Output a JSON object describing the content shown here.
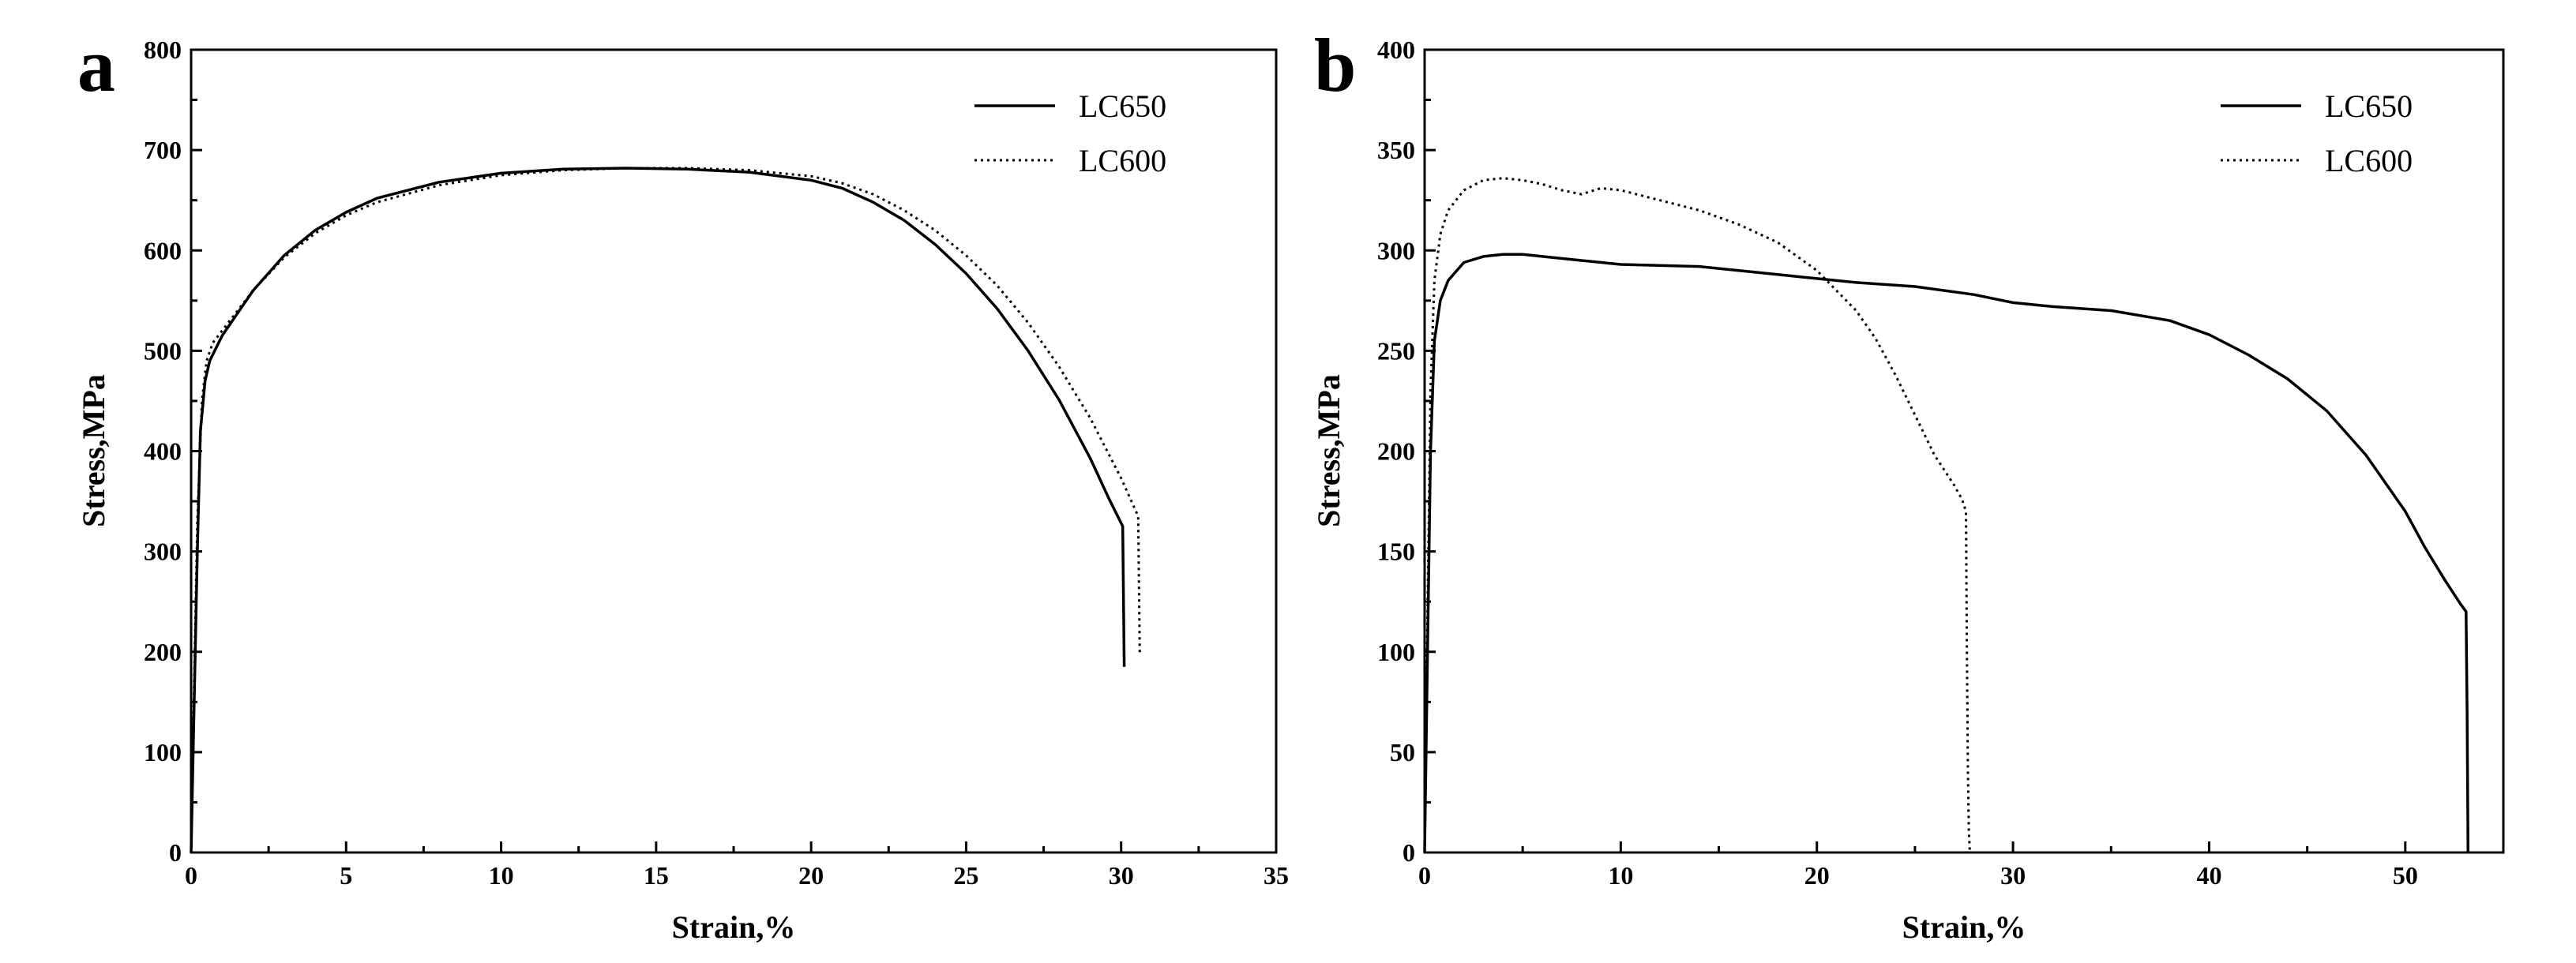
{
  "chart_data": [
    {
      "type": "line",
      "panel_label": "a",
      "title": "",
      "xlabel": "Strain,%",
      "ylabel": "Stress,MPa",
      "xlim": [
        0,
        35
      ],
      "ylim": [
        0,
        800
      ],
      "xticks": [
        0,
        5,
        10,
        15,
        20,
        25,
        30,
        35
      ],
      "yticks": [
        0,
        100,
        200,
        300,
        400,
        500,
        600,
        700,
        800
      ],
      "legend_position": "top-right",
      "series": [
        {
          "name": "LC650",
          "style": "solid",
          "x": [
            0,
            0.1,
            0.2,
            0.3,
            0.45,
            0.6,
            1,
            2,
            3,
            4,
            5,
            6,
            8,
            10,
            12,
            14,
            16,
            18,
            20,
            21,
            22,
            23,
            24,
            25,
            26,
            27,
            28,
            29,
            29.6,
            30.05,
            30.1
          ],
          "y": [
            0,
            150,
            300,
            420,
            470,
            490,
            515,
            560,
            595,
            620,
            638,
            652,
            668,
            677,
            681,
            682,
            681,
            678,
            670,
            662,
            648,
            630,
            606,
            577,
            542,
            500,
            451,
            393,
            353,
            325,
            185
          ]
        },
        {
          "name": "LC600",
          "style": "dotted",
          "x": [
            0,
            0.1,
            0.2,
            0.35,
            0.5,
            0.7,
            1,
            2,
            3,
            4,
            5,
            6,
            8,
            10,
            12,
            14,
            16,
            18,
            20,
            21,
            22,
            23,
            24,
            25,
            26,
            27,
            28,
            29,
            30,
            30.55,
            30.6
          ],
          "y": [
            0,
            170,
            330,
            450,
            490,
            508,
            520,
            560,
            593,
            617,
            635,
            648,
            665,
            675,
            680,
            682,
            682,
            680,
            674,
            667,
            656,
            640,
            620,
            595,
            565,
            528,
            484,
            433,
            373,
            335,
            197
          ]
        }
      ]
    },
    {
      "type": "line",
      "panel_label": "b",
      "title": "",
      "xlabel": "Strain,%",
      "ylabel": "Stress,MPa",
      "xlim": [
        0,
        55
      ],
      "ylim": [
        0,
        400
      ],
      "xticks": [
        0,
        10,
        20,
        30,
        40,
        50
      ],
      "yticks": [
        0,
        50,
        100,
        150,
        200,
        250,
        300,
        350,
        400
      ],
      "legend_position": "top-right",
      "series": [
        {
          "name": "LC650",
          "style": "solid",
          "x": [
            0,
            0.15,
            0.3,
            0.5,
            0.8,
            1.2,
            2,
            3,
            4,
            5,
            6,
            8,
            10,
            14,
            18,
            22,
            25,
            28,
            30,
            32,
            35,
            38,
            40,
            42,
            44,
            46,
            48,
            50,
            51,
            52,
            52.8,
            53.1,
            53.15,
            53.2
          ],
          "y": [
            0,
            100,
            200,
            255,
            275,
            285,
            294,
            297,
            298,
            298,
            297,
            295,
            293,
            292,
            288,
            284,
            282,
            278,
            274,
            272,
            270,
            265,
            258,
            248,
            236,
            220,
            198,
            170,
            152,
            136,
            124,
            120,
            70,
            0
          ]
        },
        {
          "name": "LC600",
          "style": "dotted",
          "x": [
            0,
            0.15,
            0.3,
            0.5,
            0.8,
            1.2,
            2,
            3,
            4,
            5,
            6,
            7,
            8,
            9,
            10,
            12,
            14,
            16,
            18,
            20,
            22,
            23,
            24,
            25,
            26,
            27,
            27.4,
            27.6,
            27.65,
            27.7,
            27.75,
            27.8
          ],
          "y": [
            0,
            120,
            230,
            285,
            308,
            320,
            330,
            335,
            336,
            335,
            333,
            330,
            328,
            331,
            330,
            325,
            320,
            313,
            304,
            290,
            270,
            256,
            238,
            218,
            198,
            183,
            176,
            170,
            100,
            40,
            10,
            0
          ]
        }
      ]
    }
  ]
}
